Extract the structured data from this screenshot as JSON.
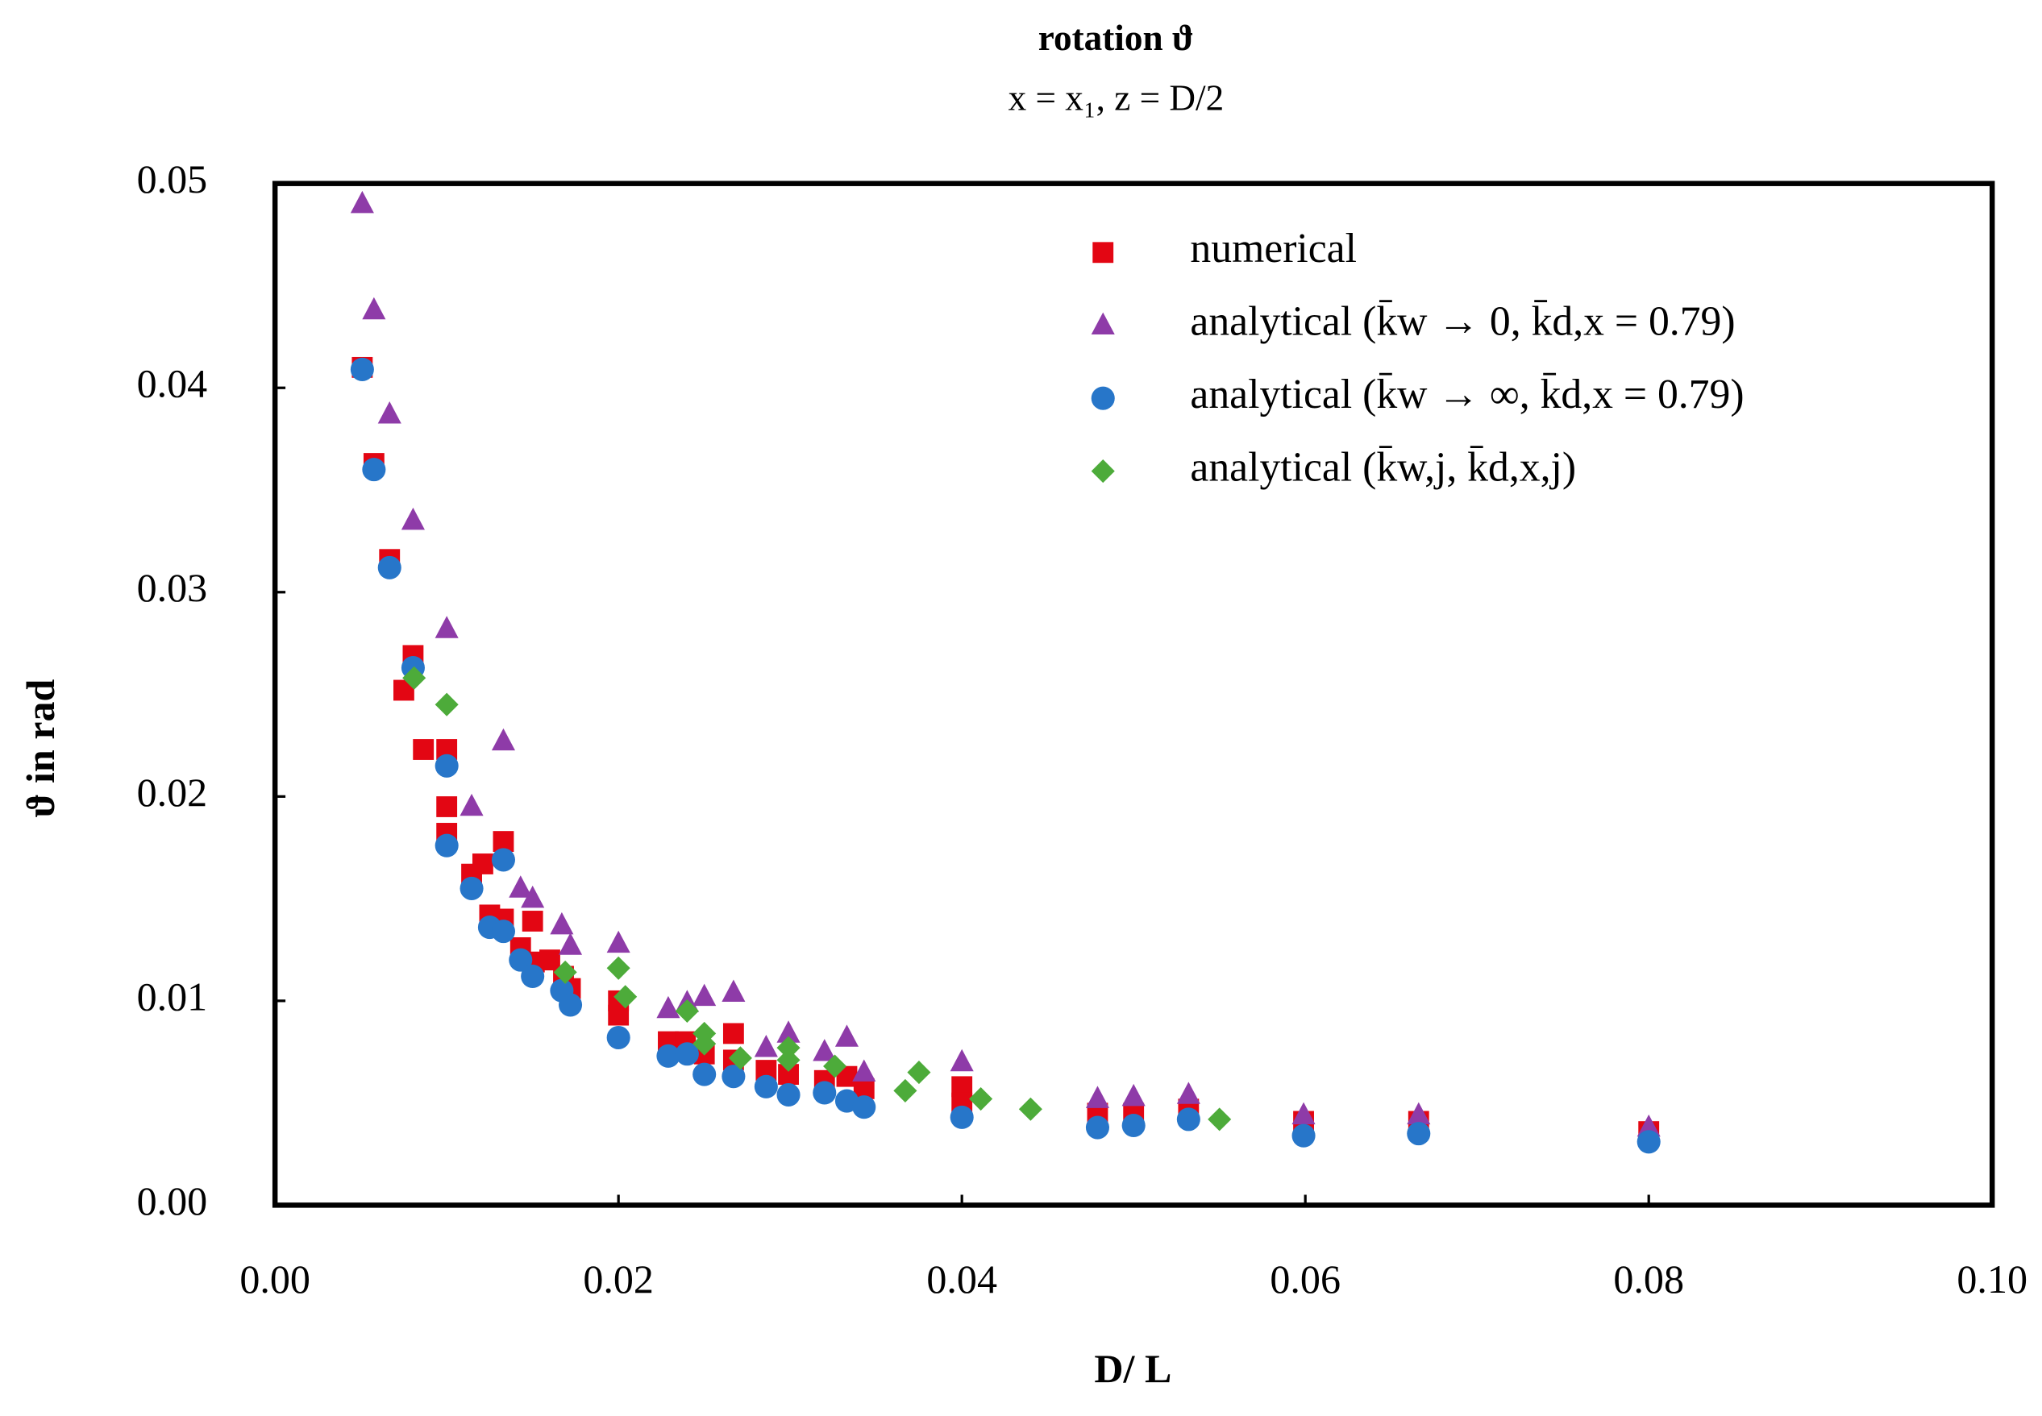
{
  "chart_data": {
    "type": "scatter",
    "title": "rotation ϑ",
    "subtitle": "x = x₁, z = D/2",
    "x_label": "D/ L",
    "y_label": "ϑ in rad",
    "xlim": [
      0,
      0.1
    ],
    "ylim": [
      0,
      0.05
    ],
    "xticks": [
      {
        "value": 0,
        "label": "0.00"
      },
      0.02,
      0.04,
      0.06,
      0.08,
      {
        "value": 0.1,
        "label": "0.10"
      }
    ],
    "yticks": [
      {
        "value": 0,
        "label": "0.00"
      },
      0.01,
      0.02,
      0.03,
      0.04,
      0.05
    ],
    "grid": false,
    "legend": "upper right",
    "series": [
      {
        "name": "numerical",
        "color": "#e30613",
        "marker": "square",
        "x": [
          0.00508,
          0.00576,
          0.00667,
          0.00804,
          0.0075,
          0.00864,
          0.01,
          0.01,
          0.01,
          0.01145,
          0.0121,
          0.0125,
          0.0133,
          0.0133,
          0.0143,
          0.015,
          0.0151,
          0.016,
          0.0168,
          0.0172,
          0.02,
          0.02,
          0.0229,
          0.0239,
          0.025,
          0.0267,
          0.0267,
          0.0286,
          0.0299,
          0.032,
          0.0333,
          0.0343,
          0.04,
          0.04,
          0.0479,
          0.05,
          0.0532,
          0.0599,
          0.0666,
          0.08
        ],
        "values": [
          0.041,
          0.0363,
          0.0316,
          0.0269,
          0.0252,
          0.0223,
          0.0223,
          0.0195,
          0.0182,
          0.0162,
          0.0167,
          0.0142,
          0.0178,
          0.014,
          0.0126,
          0.0139,
          0.0119,
          0.012,
          0.0112,
          0.0106,
          0.0093,
          0.01,
          0.008,
          0.008,
          0.0074,
          0.0084,
          0.0071,
          0.0066,
          0.0064,
          0.0061,
          0.0063,
          0.0057,
          0.0058,
          0.005,
          0.0045,
          0.0045,
          0.0047,
          0.0041,
          0.0041,
          0.0036
        ]
      },
      {
        "name": "analytical (k̄w → 0, k̄d,x = 0.79)",
        "color": "#8e3ba8",
        "marker": "triangle",
        "x": [
          0.00508,
          0.00576,
          0.00667,
          0.00804,
          0.01,
          0.01145,
          0.0133,
          0.0143,
          0.015,
          0.0167,
          0.0172,
          0.02,
          0.0229,
          0.024,
          0.025,
          0.0267,
          0.0286,
          0.0299,
          0.032,
          0.0333,
          0.0343,
          0.04,
          0.0479,
          0.05,
          0.0532,
          0.0599,
          0.0666,
          0.08
        ],
        "values": [
          0.049,
          0.0438,
          0.0387,
          0.0335,
          0.0282,
          0.0195,
          0.0227,
          0.0155,
          0.015,
          0.0137,
          0.0127,
          0.0128,
          0.0096,
          0.0099,
          0.0102,
          0.0104,
          0.0077,
          0.0084,
          0.0075,
          0.0082,
          0.0065,
          0.007,
          0.0052,
          0.0053,
          0.0054,
          0.0044,
          0.0044,
          0.0038
        ]
      },
      {
        "name": "analytical (k̄w → ∞, k̄d,x = 0.79)",
        "color": "#2776c9",
        "marker": "circle",
        "x": [
          0.00508,
          0.00576,
          0.00667,
          0.00804,
          0.01,
          0.01,
          0.01145,
          0.0125,
          0.0133,
          0.0133,
          0.0143,
          0.015,
          0.0167,
          0.0172,
          0.02,
          0.0229,
          0.024,
          0.025,
          0.0267,
          0.0286,
          0.0299,
          0.032,
          0.0333,
          0.0343,
          0.04,
          0.0479,
          0.05,
          0.0532,
          0.0599,
          0.0666,
          0.08
        ],
        "values": [
          0.0409,
          0.036,
          0.0312,
          0.0263,
          0.0215,
          0.0176,
          0.0155,
          0.0136,
          0.0169,
          0.0134,
          0.012,
          0.0112,
          0.0105,
          0.0098,
          0.0082,
          0.0073,
          0.0074,
          0.0064,
          0.0063,
          0.0058,
          0.0054,
          0.0055,
          0.0051,
          0.0048,
          0.0043,
          0.0038,
          0.0039,
          0.0042,
          0.0034,
          0.0035,
          0.0031
        ]
      },
      {
        "name": "analytical (k̄w,j, k̄d,x,j)",
        "color": "#4dab3a",
        "marker": "diamond",
        "x": [
          0.0081,
          0.01,
          0.0169,
          0.02,
          0.0204,
          0.024,
          0.025,
          0.025,
          0.0271,
          0.0299,
          0.0299,
          0.0326,
          0.0367,
          0.0375,
          0.0411,
          0.044,
          0.055
        ],
        "values": [
          0.0258,
          0.0245,
          0.0114,
          0.0116,
          0.0102,
          0.0095,
          0.0084,
          0.0079,
          0.0072,
          0.0077,
          0.0071,
          0.0068,
          0.0056,
          0.0065,
          0.0052,
          0.0047,
          0.0042
        ]
      }
    ]
  }
}
